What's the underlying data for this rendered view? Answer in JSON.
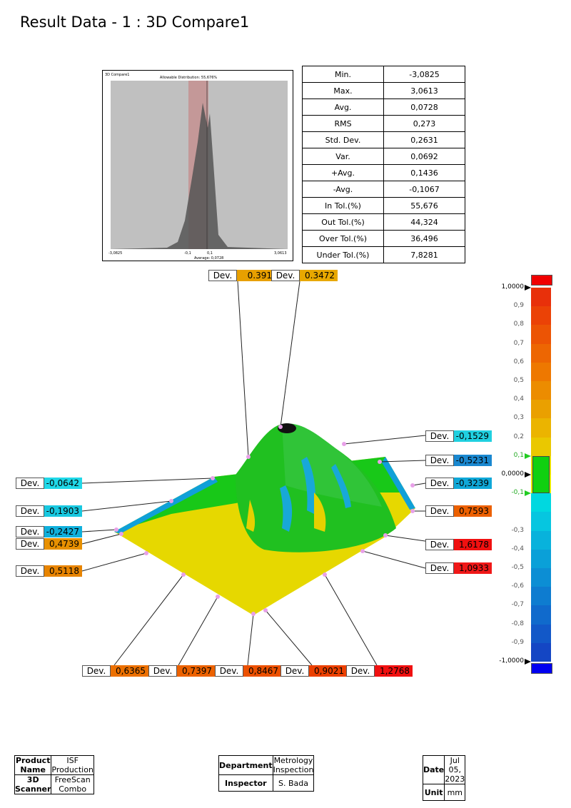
{
  "title": "Result Data - 1 :  3D Compare1",
  "histogram": {
    "name": "3D Compare1",
    "caption": "Allowable Distribution: 55,676%",
    "average_label": "Average: 0,0728",
    "min_tick": "-3,0825",
    "max_tick": "3,0613",
    "tol_low": "-0,1",
    "tol_high": "0,1"
  },
  "stats": [
    {
      "k": "Min.",
      "v": "-3,0825"
    },
    {
      "k": "Max.",
      "v": "3,0613"
    },
    {
      "k": "Avg.",
      "v": "0,0728"
    },
    {
      "k": "RMS",
      "v": "0,273"
    },
    {
      "k": "Std. Dev.",
      "v": "0,2631"
    },
    {
      "k": "Var.",
      "v": "0,0692"
    },
    {
      "k": "+Avg.",
      "v": "0,1436"
    },
    {
      "k": "-Avg.",
      "v": "-0,1067"
    },
    {
      "k": "In Tol.(%)",
      "v": "55,676"
    },
    {
      "k": "Out Tol.(%)",
      "v": "44,324"
    },
    {
      "k": "Over Tol.(%)",
      "v": "36,496"
    },
    {
      "k": "Under Tol.(%)",
      "v": "7,8281"
    }
  ],
  "callouts": [
    {
      "label": "Dev.",
      "value": "0.391",
      "color": "#e8a000"
    },
    {
      "label": "Dev.",
      "value": "0.3472",
      "color": "#e8a800"
    },
    {
      "label": "Dev.",
      "value": "-0,1529",
      "color": "#20d0e0"
    },
    {
      "label": "Dev.",
      "value": "-0,5231",
      "color": "#1a88d0"
    },
    {
      "label": "Dev.",
      "value": "-0,3239",
      "color": "#10a8d8"
    },
    {
      "label": "Dev.",
      "value": "0,7593",
      "color": "#ec6000"
    },
    {
      "label": "Dev.",
      "value": "1,6178",
      "color": "#f01010"
    },
    {
      "label": "Dev.",
      "value": "1,0933",
      "color": "#f01818"
    },
    {
      "label": "Dev.",
      "value": "-0,0642",
      "color": "#20d8e8"
    },
    {
      "label": "Dev.",
      "value": "-0,1903",
      "color": "#18c8e0"
    },
    {
      "label": "Dev.",
      "value": "-0,2427",
      "color": "#10b0dc"
    },
    {
      "label": "Dev.",
      "value": "0,4739",
      "color": "#e89000"
    },
    {
      "label": "Dev.",
      "value": "0,5118",
      "color": "#e88400"
    },
    {
      "label": "Dev.",
      "value": "0,6365",
      "color": "#ec7000"
    },
    {
      "label": "Dev.",
      "value": "0,7397",
      "color": "#ec6200"
    },
    {
      "label": "Dev.",
      "value": "0,8467",
      "color": "#ec5000"
    },
    {
      "label": "Dev.",
      "value": "0,9021",
      "color": "#ec4000"
    },
    {
      "label": "Dev.",
      "value": "1,2768",
      "color": "#f01010"
    }
  ],
  "colorbar": {
    "max": "1,0000",
    "zero": "0,0000",
    "min": "-1,0000",
    "tol_high": "0,1",
    "tol_low": "-0,1",
    "labels": [
      "0,9",
      "0,8",
      "0,7",
      "0,6",
      "0,5",
      "0,4",
      "0,3",
      "0,2",
      "-0,3",
      "-0,4",
      "-0,5",
      "-0,6",
      "-0,7",
      "-0,8",
      "-0,9"
    ],
    "over_color": "#f00000",
    "under_color": "#0000f0",
    "tol_color": "#10d010"
  },
  "footer": {
    "product_name_label": "Product Name",
    "product_name": "ISF Production",
    "scanner_label": "3D Scanner",
    "scanner": "FreeScan Combo",
    "department_label": "Department",
    "department": "Metrology Inspection",
    "inspector_label": "Inspector",
    "inspector": "S. Bada",
    "date_label": "Date",
    "date": "Jul 05, 2023",
    "unit_label": "Unit",
    "unit": "mm"
  }
}
